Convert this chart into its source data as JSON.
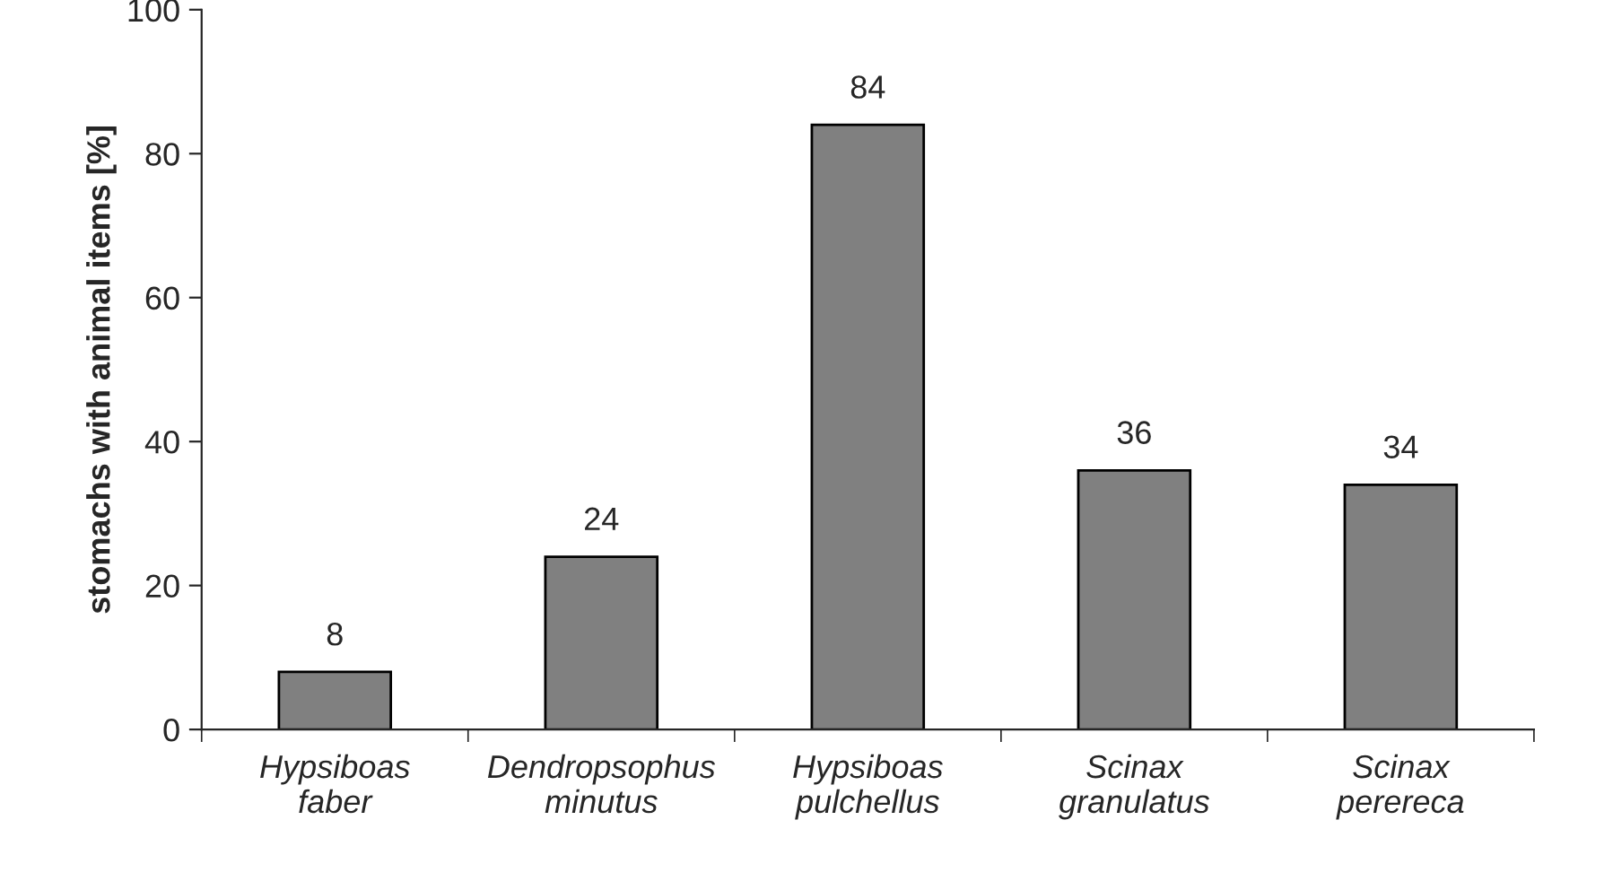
{
  "chart_data": {
    "type": "bar",
    "ylabel": "stomachs with animal items [%]",
    "categories": [
      "Hypsiboas\nfaber",
      "Dendropsophus\nminutus",
      "Hypsiboas\npulchellus",
      "Scinax\ngranulatus",
      "Scinax\nperereca"
    ],
    "values": [
      8,
      24,
      84,
      36,
      34
    ],
    "color": "#808080",
    "ylim": [
      0,
      100
    ],
    "yticks": [
      0,
      20,
      40,
      60,
      80,
      100
    ],
    "data_labels": true,
    "grid": false,
    "legend": false
  }
}
